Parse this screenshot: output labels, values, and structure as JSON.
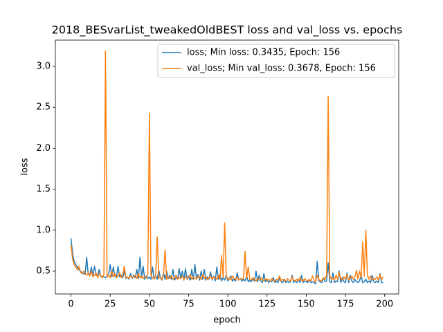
{
  "chart_data": {
    "type": "line",
    "title": "2018_BESvarList_tweakedOldBEST loss and val_loss vs. epochs",
    "xlabel": "epoch",
    "ylabel": "loss",
    "x": [
      0,
      1,
      2,
      3,
      4,
      5,
      6,
      7,
      8,
      9,
      10,
      11,
      12,
      13,
      14,
      15,
      16,
      17,
      18,
      19,
      20,
      21,
      22,
      23,
      24,
      25,
      26,
      27,
      28,
      29,
      30,
      31,
      32,
      33,
      34,
      35,
      36,
      37,
      38,
      39,
      40,
      41,
      42,
      43,
      44,
      45,
      46,
      47,
      48,
      49,
      50,
      51,
      52,
      53,
      54,
      55,
      56,
      57,
      58,
      59,
      60,
      61,
      62,
      63,
      64,
      65,
      66,
      67,
      68,
      69,
      70,
      71,
      72,
      73,
      74,
      75,
      76,
      77,
      78,
      79,
      80,
      81,
      82,
      83,
      84,
      85,
      86,
      87,
      88,
      89,
      90,
      91,
      92,
      93,
      94,
      95,
      96,
      97,
      98,
      99,
      100,
      101,
      102,
      103,
      104,
      105,
      106,
      107,
      108,
      109,
      110,
      111,
      112,
      113,
      114,
      115,
      116,
      117,
      118,
      119,
      120,
      121,
      122,
      123,
      124,
      125,
      126,
      127,
      128,
      129,
      130,
      131,
      132,
      133,
      134,
      135,
      136,
      137,
      138,
      139,
      140,
      141,
      142,
      143,
      144,
      145,
      146,
      147,
      148,
      149,
      150,
      151,
      152,
      153,
      154,
      155,
      156,
      157,
      158,
      159,
      160,
      161,
      162,
      163,
      164,
      165,
      166,
      167,
      168,
      169,
      170,
      171,
      172,
      173,
      174,
      175,
      176,
      177,
      178,
      179,
      180,
      181,
      182,
      183,
      184,
      185,
      186,
      187,
      188,
      189,
      190,
      191,
      192,
      193,
      194,
      195,
      196,
      197,
      198,
      199
    ],
    "series": [
      {
        "name": "loss; Min loss: 0.3435, Epoch: 156",
        "color": "#1f77b4",
        "values": [
          0.9,
          0.72,
          0.62,
          0.58,
          0.55,
          0.52,
          0.5,
          0.48,
          0.47,
          0.46,
          0.67,
          0.46,
          0.45,
          0.55,
          0.44,
          0.56,
          0.45,
          0.44,
          0.52,
          0.43,
          0.44,
          0.43,
          0.42,
          0.44,
          0.46,
          0.58,
          0.43,
          0.55,
          0.44,
          0.42,
          0.56,
          0.43,
          0.45,
          0.42,
          0.5,
          0.41,
          0.43,
          0.4,
          0.47,
          0.41,
          0.45,
          0.42,
          0.52,
          0.41,
          0.67,
          0.42,
          0.56,
          0.4,
          0.44,
          0.41,
          0.43,
          0.4,
          0.55,
          0.41,
          0.44,
          0.4,
          0.51,
          0.42,
          0.39,
          0.48,
          0.4,
          0.5,
          0.41,
          0.45,
          0.4,
          0.52,
          0.39,
          0.42,
          0.4,
          0.53,
          0.41,
          0.5,
          0.39,
          0.53,
          0.4,
          0.44,
          0.39,
          0.52,
          0.4,
          0.58,
          0.41,
          0.46,
          0.39,
          0.5,
          0.4,
          0.52,
          0.39,
          0.43,
          0.4,
          0.49,
          0.39,
          0.44,
          0.38,
          0.55,
          0.4,
          0.46,
          0.38,
          0.42,
          0.39,
          0.45,
          0.38,
          0.41,
          0.44,
          0.38,
          0.4,
          0.38,
          0.48,
          0.39,
          0.41,
          0.38,
          0.4,
          0.38,
          0.44,
          0.37,
          0.39,
          0.37,
          0.41,
          0.38,
          0.5,
          0.37,
          0.45,
          0.38,
          0.36,
          0.47,
          0.37,
          0.4,
          0.36,
          0.38,
          0.37,
          0.42,
          0.36,
          0.38,
          0.36,
          0.42,
          0.37,
          0.36,
          0.4,
          0.36,
          0.38,
          0.36,
          0.37,
          0.45,
          0.36,
          0.38,
          0.36,
          0.4,
          0.36,
          0.45,
          0.36,
          0.38,
          0.37,
          0.36,
          0.4,
          0.36,
          0.37,
          0.36,
          0.3435,
          0.62,
          0.38,
          0.37,
          0.36,
          0.42,
          0.37,
          0.38,
          0.6,
          0.37,
          0.36,
          0.48,
          0.36,
          0.38,
          0.37,
          0.5,
          0.36,
          0.42,
          0.37,
          0.36,
          0.48,
          0.36,
          0.45,
          0.38,
          0.36,
          0.4,
          0.37,
          0.36,
          0.38,
          0.45,
          0.36,
          0.37,
          0.4,
          0.36,
          0.38,
          0.36,
          0.45,
          0.37,
          0.36,
          0.38,
          0.36,
          0.47,
          0.36,
          0.36
        ]
      },
      {
        "name": "val_loss; Min val_loss: 0.3678, Epoch: 156",
        "color": "#ff7f0e",
        "values": [
          0.82,
          0.65,
          0.58,
          0.55,
          0.52,
          0.56,
          0.49,
          0.47,
          0.5,
          0.46,
          0.45,
          0.48,
          0.44,
          0.5,
          0.43,
          0.45,
          0.48,
          0.42,
          0.47,
          0.44,
          0.42,
          0.46,
          3.19,
          0.43,
          0.45,
          0.42,
          0.5,
          0.43,
          0.47,
          0.42,
          0.44,
          0.48,
          0.42,
          0.45,
          0.56,
          0.42,
          0.43,
          0.41,
          0.44,
          0.42,
          0.43,
          0.45,
          0.41,
          0.47,
          0.42,
          0.44,
          0.41,
          0.43,
          0.42,
          0.46,
          2.43,
          0.45,
          0.42,
          0.4,
          0.44,
          0.92,
          0.41,
          0.43,
          0.4,
          0.45,
          0.76,
          0.4,
          0.43,
          0.41,
          0.44,
          0.4,
          0.42,
          0.45,
          0.4,
          0.42,
          0.41,
          0.44,
          0.4,
          0.43,
          0.41,
          0.42,
          0.46,
          0.4,
          0.43,
          0.41,
          0.4,
          0.44,
          0.42,
          0.4,
          0.46,
          0.41,
          0.43,
          0.4,
          0.42,
          0.44,
          0.4,
          0.43,
          0.41,
          0.4,
          0.45,
          0.4,
          0.69,
          0.42,
          1.09,
          0.43,
          0.4,
          0.42,
          0.39,
          0.44,
          0.41,
          0.4,
          0.43,
          0.39,
          0.41,
          0.4,
          0.42,
          0.74,
          0.41,
          0.55,
          0.4,
          0.39,
          0.42,
          0.4,
          0.38,
          0.41,
          0.39,
          0.42,
          0.4,
          0.38,
          0.41,
          0.39,
          0.4,
          0.38,
          0.41,
          0.39,
          0.38,
          0.4,
          0.39,
          0.44,
          0.38,
          0.4,
          0.39,
          0.38,
          0.41,
          0.39,
          0.38,
          0.43,
          0.39,
          0.38,
          0.4,
          0.38,
          0.42,
          0.39,
          0.38,
          0.41,
          0.39,
          0.38,
          0.4,
          0.38,
          0.44,
          0.39,
          0.3678,
          0.45,
          0.4,
          0.38,
          0.39,
          0.42,
          0.4,
          0.45,
          2.63,
          0.44,
          0.4,
          0.42,
          0.39,
          0.45,
          0.4,
          0.48,
          0.41,
          0.39,
          0.43,
          0.4,
          0.46,
          0.39,
          0.41,
          0.44,
          0.4,
          0.43,
          0.51,
          0.4,
          0.5,
          0.42,
          0.86,
          0.44,
          1.0,
          0.45,
          0.4,
          0.44,
          0.39,
          0.41,
          0.4,
          0.43,
          0.39,
          0.46,
          0.4,
          0.43
        ]
      }
    ],
    "xlim": [
      -9.95,
      208.95
    ],
    "xticks": [
      0,
      25,
      50,
      75,
      100,
      125,
      150,
      175,
      200
    ],
    "ylim": [
      0.221,
      3.321
    ],
    "yticks": [
      0.5,
      {
        "value": 1.0,
        "label": "1.0"
      },
      1.5,
      {
        "value": 2.0,
        "label": "2.0"
      },
      2.5,
      {
        "value": 3.0,
        "label": "3.0"
      }
    ],
    "grid": false,
    "legend": "upper right"
  }
}
